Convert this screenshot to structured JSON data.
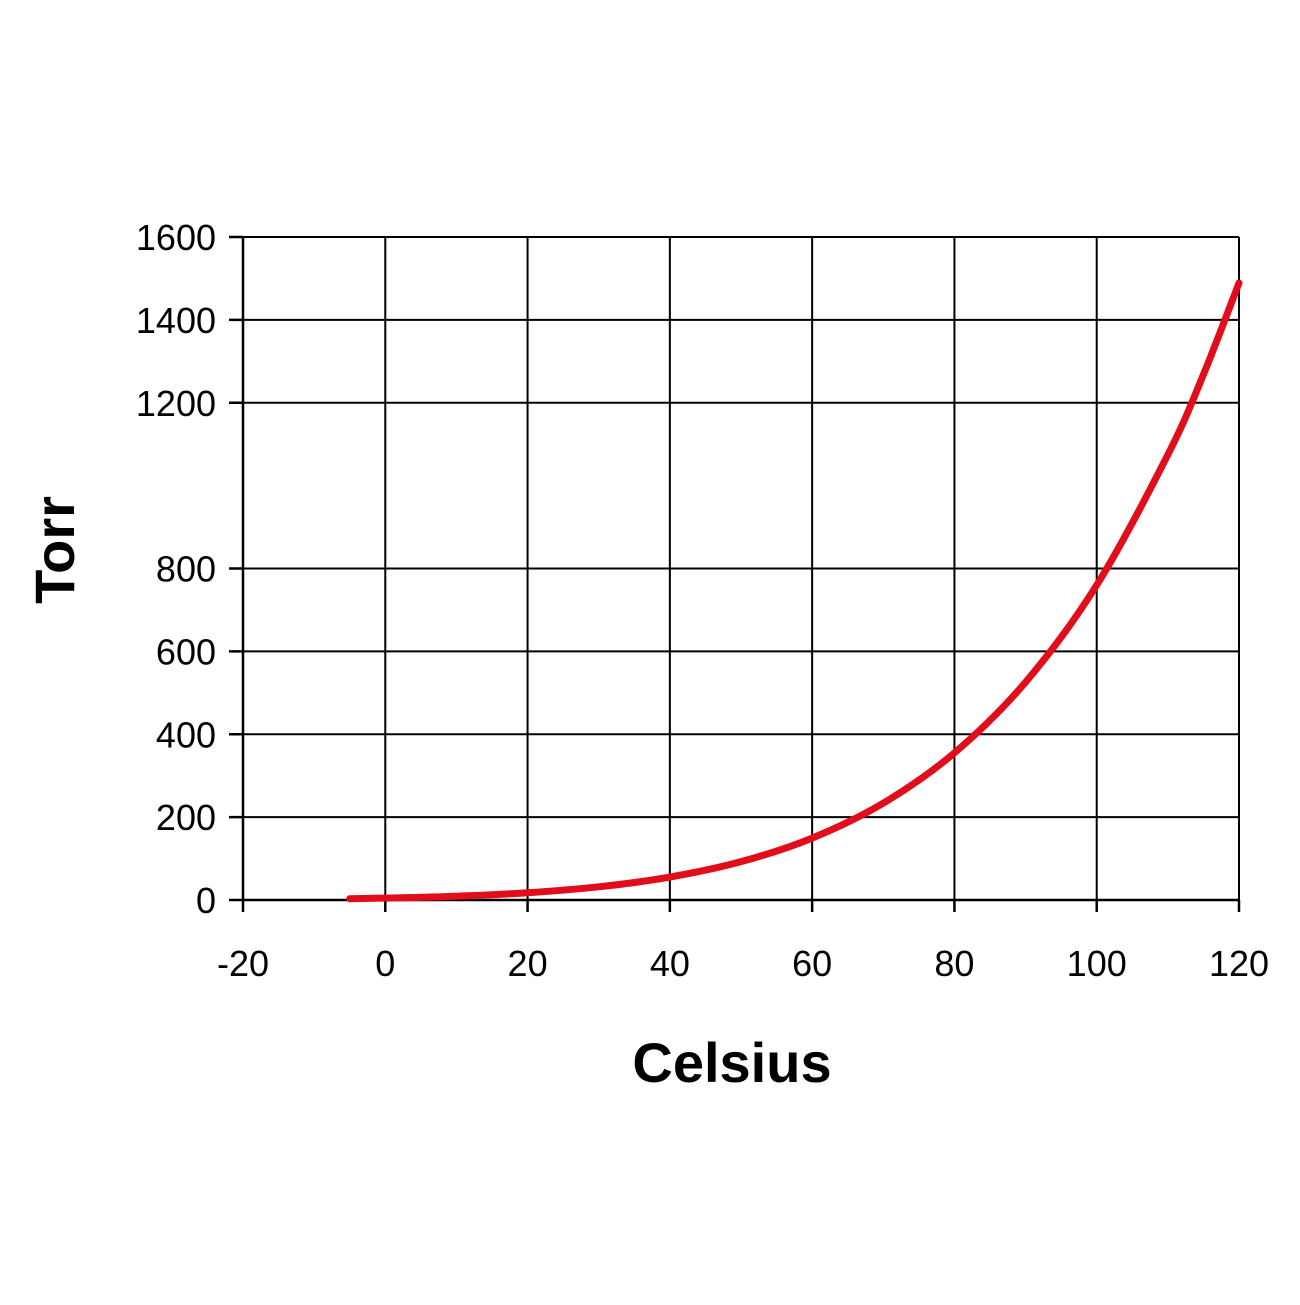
{
  "chart_data": {
    "type": "line",
    "title": "",
    "xlabel": "Celsius",
    "ylabel": "Torr",
    "xlim": [
      -20,
      120
    ],
    "ylim": [
      0,
      1600
    ],
    "grid": true,
    "legend": "none",
    "x_ticks": [
      "-20",
      "0",
      "20",
      "40",
      "60",
      "80",
      "100",
      "120"
    ],
    "y_ticks": [
      "0",
      "200",
      "400",
      "600",
      "800",
      "1200",
      "1400",
      "1600"
    ],
    "series": [
      {
        "color": "#e10d1b",
        "x": [
          -5,
          0,
          10,
          20,
          30,
          40,
          50,
          60,
          70,
          80,
          90,
          100,
          110,
          115,
          120
        ],
        "y": [
          3,
          4.6,
          9.2,
          17.5,
          31.8,
          55.3,
          92.5,
          149.4,
          233.7,
          355.1,
          525.8,
          760,
          1074.6,
          1268,
          1489
        ]
      }
    ]
  }
}
